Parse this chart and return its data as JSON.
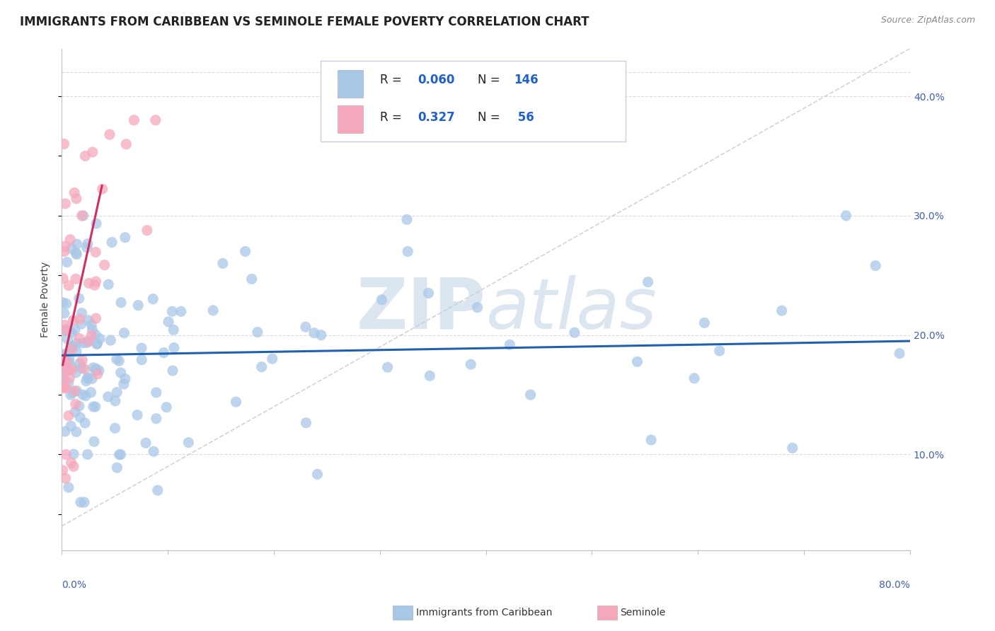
{
  "title": "IMMIGRANTS FROM CARIBBEAN VS SEMINOLE FEMALE POVERTY CORRELATION CHART",
  "source": "Source: ZipAtlas.com",
  "ylabel": "Female Poverty",
  "right_yticks": [
    0.1,
    0.2,
    0.3,
    0.4
  ],
  "right_yticklabels": [
    "10.0%",
    "20.0%",
    "30.0%",
    "40.0%"
  ],
  "xlim": [
    0.0,
    0.8
  ],
  "ylim": [
    0.02,
    0.44
  ],
  "legend1_R": "0.060",
  "legend1_N": "146",
  "legend2_R": "0.327",
  "legend2_N": "56",
  "scatter1_color": "#a8c8e8",
  "scatter2_color": "#f5a8bc",
  "line1_color": "#2060b0",
  "line2_color": "#d03060",
  "dashed_color": "#c8c8d8",
  "watermark_color": "#d8e4f0",
  "background_color": "#ffffff",
  "grid_color": "#d8d8e8",
  "title_fontsize": 12,
  "axis_label_fontsize": 10,
  "tick_fontsize": 10,
  "legend_fontsize": 12,
  "source_fontsize": 9
}
